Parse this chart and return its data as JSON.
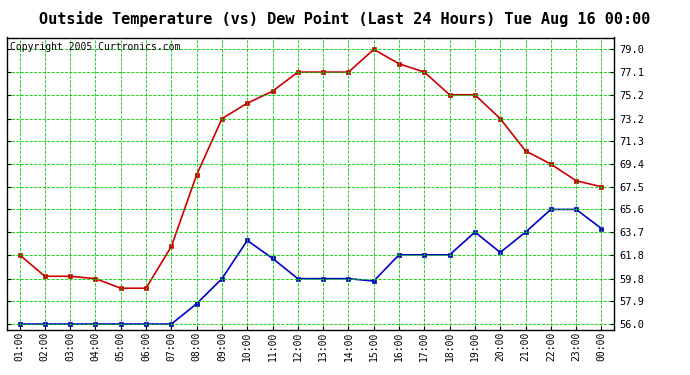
{
  "title": "Outside Temperature (vs) Dew Point (Last 24 Hours) Tue Aug 16 00:00",
  "copyright": "Copyright 2005 Curtronics.com",
  "x_labels": [
    "01:00",
    "02:00",
    "03:00",
    "04:00",
    "05:00",
    "06:00",
    "07:00",
    "08:00",
    "09:00",
    "10:00",
    "11:00",
    "12:00",
    "13:00",
    "14:00",
    "15:00",
    "16:00",
    "17:00",
    "18:00",
    "19:00",
    "20:00",
    "21:00",
    "22:00",
    "23:00",
    "00:00"
  ],
  "temp_red": [
    61.8,
    60.0,
    60.0,
    59.8,
    59.0,
    59.0,
    62.5,
    68.5,
    73.2,
    74.5,
    75.5,
    77.1,
    77.1,
    77.1,
    79.0,
    77.8,
    77.1,
    75.2,
    75.2,
    73.2,
    70.5,
    69.4,
    68.0,
    67.5
  ],
  "dew_blue": [
    56.0,
    56.0,
    56.0,
    56.0,
    56.0,
    56.0,
    56.0,
    57.7,
    59.8,
    63.0,
    61.5,
    59.8,
    59.8,
    59.8,
    59.6,
    61.8,
    61.8,
    61.8,
    63.7,
    62.0,
    63.7,
    65.6,
    65.6,
    64.0
  ],
  "y_ticks": [
    56.0,
    57.9,
    59.8,
    61.8,
    63.7,
    65.6,
    67.5,
    69.4,
    71.3,
    73.2,
    75.2,
    77.1,
    79.0
  ],
  "ylim": [
    55.5,
    80.0
  ],
  "bg_color": "#ffffff",
  "plot_bg": "#ffffff",
  "grid_color": "#00cc00",
  "temp_color": "#cc0000",
  "dew_color": "#0000cc",
  "title_fontsize": 11,
  "copyright_fontsize": 7
}
